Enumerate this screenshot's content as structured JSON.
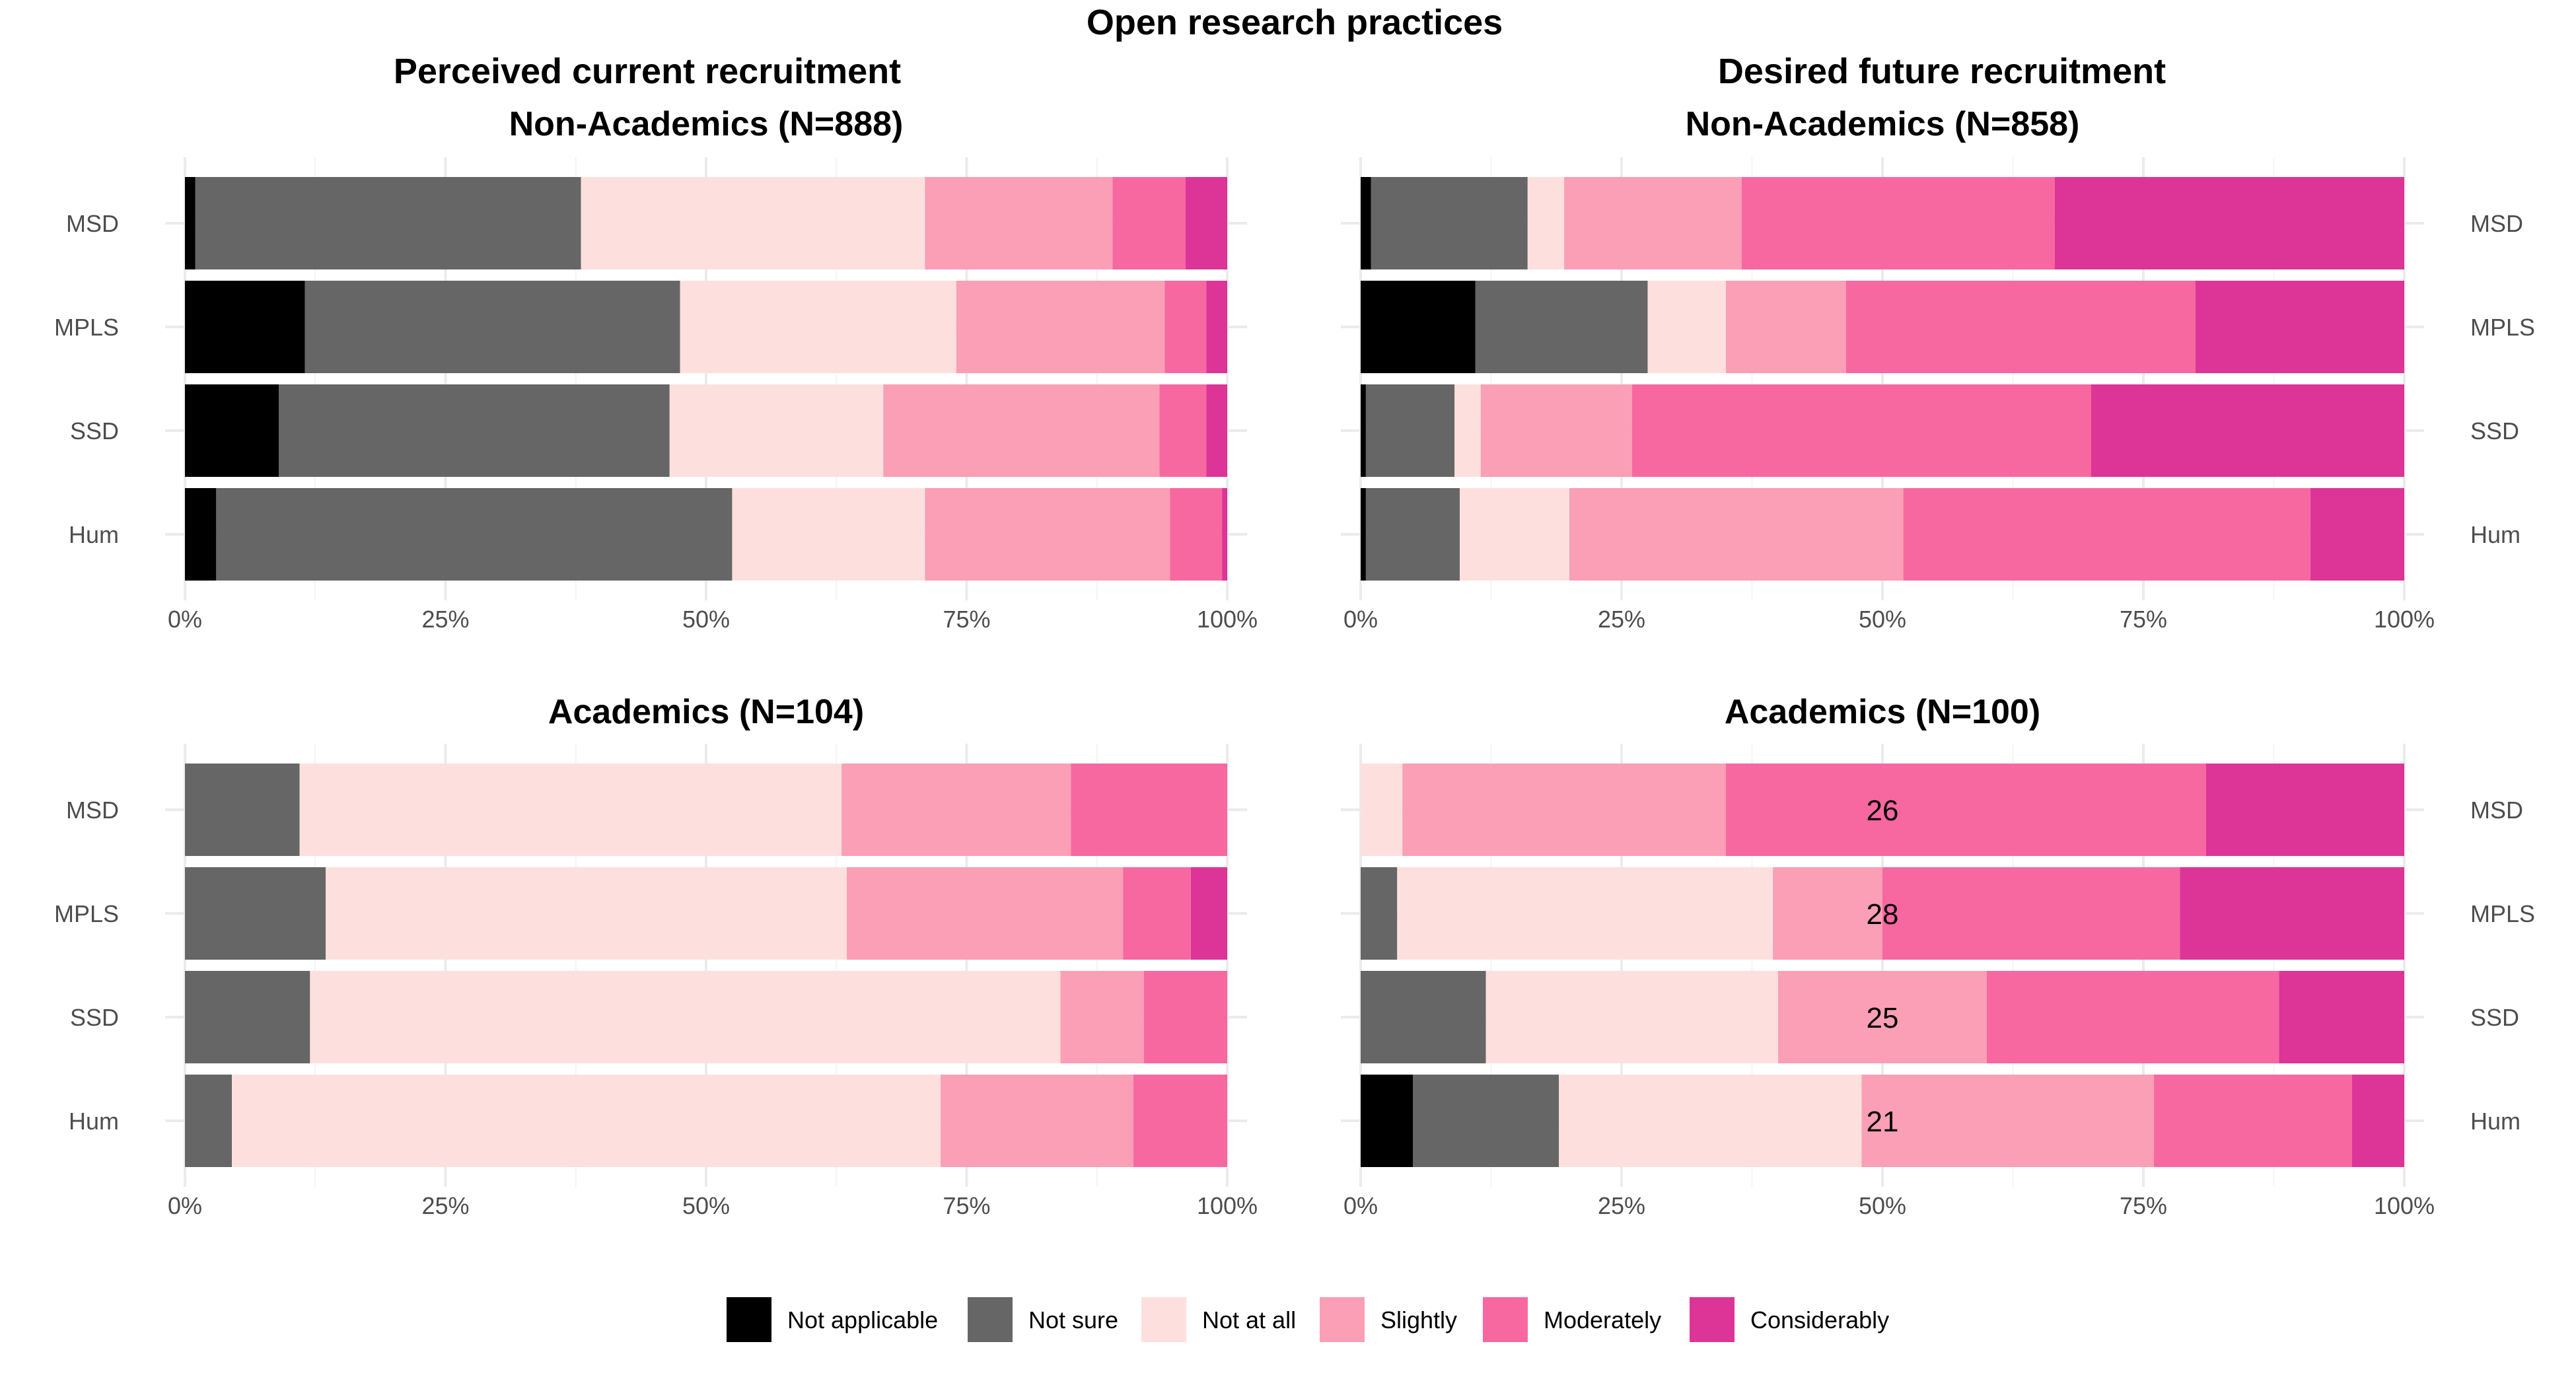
{
  "title": "Open research practices",
  "column_titles": [
    "Perceived current recruitment",
    "Desired future recruitment"
  ],
  "legend": [
    {
      "label": "Not applicable",
      "color": "#000000"
    },
    {
      "label": "Not sure",
      "color": "#666666"
    },
    {
      "label": "Not at all",
      "color": "#fde0dd"
    },
    {
      "label": "Slightly",
      "color": "#fa9fb5"
    },
    {
      "label": "Moderately",
      "color": "#f768a1"
    },
    {
      "label": "Considerably",
      "color": "#dd3497"
    }
  ],
  "chart_data": [
    {
      "type": "bar",
      "stacked": true,
      "orientation": "horizontal",
      "title": "Non-Academics (N=888)",
      "column": "Perceived current recruitment",
      "categories": [
        "MSD",
        "MPLS",
        "SSD",
        "Hum"
      ],
      "xlim": [
        0,
        100
      ],
      "x_ticks": [
        "0%",
        "25%",
        "50%",
        "75%",
        "100%"
      ],
      "series": [
        {
          "name": "Not applicable",
          "values": [
            1,
            11.5,
            9,
            3
          ]
        },
        {
          "name": "Not sure",
          "values": [
            37,
            36,
            37.5,
            49.5
          ]
        },
        {
          "name": "Not at all",
          "values": [
            33,
            26.5,
            20.5,
            18.5
          ]
        },
        {
          "name": "Slightly",
          "values": [
            18,
            20,
            26.5,
            23.5
          ]
        },
        {
          "name": "Moderately",
          "values": [
            7,
            4,
            4.5,
            5
          ]
        },
        {
          "name": "Considerably",
          "values": [
            4,
            2,
            2,
            0.5
          ]
        }
      ],
      "bar_labels": [
        "",
        "",
        "",
        ""
      ]
    },
    {
      "type": "bar",
      "stacked": true,
      "orientation": "horizontal",
      "title": "Non-Academics (N=858)",
      "column": "Desired future recruitment",
      "categories": [
        "MSD",
        "MPLS",
        "SSD",
        "Hum"
      ],
      "xlim": [
        0,
        100
      ],
      "x_ticks": [
        "0%",
        "25%",
        "50%",
        "75%",
        "100%"
      ],
      "series": [
        {
          "name": "Not applicable",
          "values": [
            1,
            11,
            0.5,
            0.5
          ]
        },
        {
          "name": "Not sure",
          "values": [
            15,
            16.5,
            8.5,
            9
          ]
        },
        {
          "name": "Not at all",
          "values": [
            3.5,
            7.5,
            2.5,
            10.5
          ]
        },
        {
          "name": "Slightly",
          "values": [
            17,
            11.5,
            14.5,
            32
          ]
        },
        {
          "name": "Moderately",
          "values": [
            30,
            33.5,
            44,
            39
          ]
        },
        {
          "name": "Considerably",
          "values": [
            33.5,
            20,
            30,
            9
          ]
        }
      ],
      "bar_labels": [
        "",
        "",
        "",
        ""
      ]
    },
    {
      "type": "bar",
      "stacked": true,
      "orientation": "horizontal",
      "title": "Academics (N=104)",
      "column": "Perceived current recruitment",
      "categories": [
        "MSD",
        "MPLS",
        "SSD",
        "Hum"
      ],
      "xlim": [
        0,
        100
      ],
      "x_ticks": [
        "0%",
        "25%",
        "50%",
        "75%",
        "100%"
      ],
      "series": [
        {
          "name": "Not applicable",
          "values": [
            0,
            0,
            0,
            0
          ]
        },
        {
          "name": "Not sure",
          "values": [
            11,
            13.5,
            12,
            4.5
          ]
        },
        {
          "name": "Not at all",
          "values": [
            52,
            50,
            72,
            68
          ]
        },
        {
          "name": "Slightly",
          "values": [
            22,
            26.5,
            8,
            18.5
          ]
        },
        {
          "name": "Moderately",
          "values": [
            15,
            6.5,
            8,
            9
          ]
        },
        {
          "name": "Considerably",
          "values": [
            0,
            3.5,
            0,
            0
          ]
        }
      ],
      "bar_labels": [
        "",
        "",
        "",
        ""
      ]
    },
    {
      "type": "bar",
      "stacked": true,
      "orientation": "horizontal",
      "title": "Academics (N=100)",
      "column": "Desired future recruitment",
      "categories": [
        "MSD",
        "MPLS",
        "SSD",
        "Hum"
      ],
      "xlim": [
        0,
        100
      ],
      "x_ticks": [
        "0%",
        "25%",
        "50%",
        "75%",
        "100%"
      ],
      "series": [
        {
          "name": "Not applicable",
          "values": [
            0,
            0,
            0,
            5
          ]
        },
        {
          "name": "Not sure",
          "values": [
            0,
            3.5,
            12,
            14
          ]
        },
        {
          "name": "Not at all",
          "values": [
            4,
            36,
            28,
            29
          ]
        },
        {
          "name": "Slightly",
          "values": [
            31,
            10.5,
            20,
            28
          ]
        },
        {
          "name": "Moderately",
          "values": [
            46,
            28.5,
            28,
            19
          ]
        },
        {
          "name": "Considerably",
          "values": [
            19,
            21.5,
            12,
            5
          ]
        }
      ],
      "bar_labels": [
        "26",
        "28",
        "25",
        "21"
      ]
    }
  ]
}
